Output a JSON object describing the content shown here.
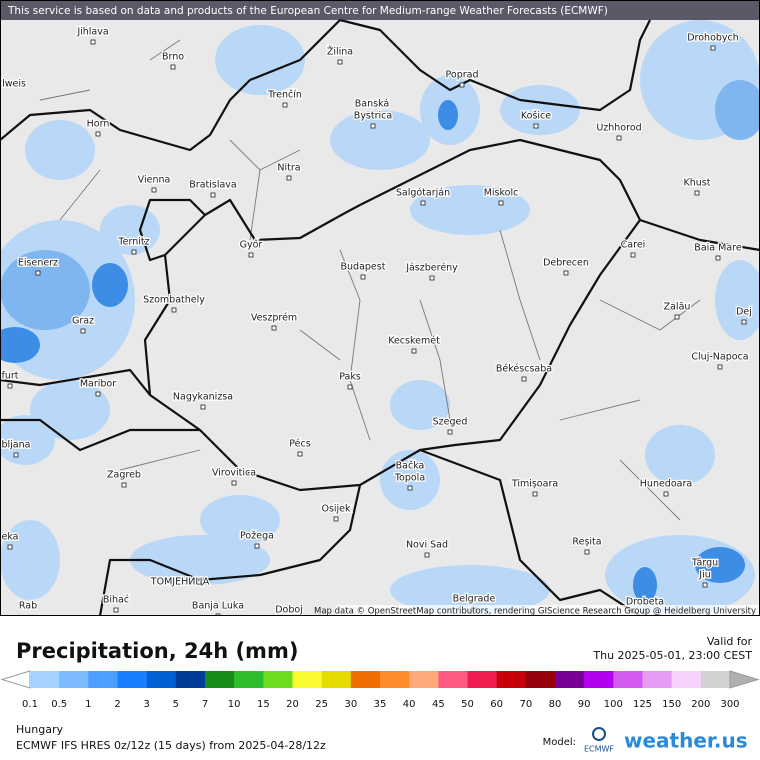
{
  "header": {
    "notice": "This service is based on data and products of the European Centre for Medium-range Weather Forecasts (ECMWF)"
  },
  "map": {
    "attribution": "Map data © OpenStreetMap contributors, rendering GIScience Research Group @ Heidelberg University",
    "cities": [
      "Jihlava",
      "Brno",
      "Žilina",
      "Poprad",
      "Drohobych",
      "lweis",
      "Horn",
      "Trenčín",
      "Banská",
      "Bystrica",
      "Košice",
      "Uzhhorod",
      "Nitra",
      "Vienna",
      "Bratislava",
      "Salgótarján",
      "Miskolc",
      "Khust",
      "Ternitz",
      "Győr",
      "Carei",
      "Baia Mare",
      "Eisenerz",
      "Budapest",
      "Jászberény",
      "Debrecen",
      "Szombathely",
      "Zalău",
      "Graz",
      "Veszprém",
      "Dej",
      "Kecskemét",
      "Cluj-Napoca",
      "furt",
      "Paks",
      "Békéscsaba",
      "Maribor",
      "Nagykanizsa",
      "Szeged",
      "bljana",
      "Pécs",
      "Zagreb",
      "Virovitica",
      "Bačka",
      "Topola",
      "Timișoara",
      "Hunedoara",
      "eka",
      "Osijek",
      "Požega",
      "Novi Sad",
      "Reșita",
      "Târgu",
      "Jiu",
      "ТОМЈЕНИЦА",
      "Bihać",
      "Banja Luka",
      "Doboj",
      "Belgrade",
      "Drobeta",
      "Rab"
    ]
  },
  "legend": {
    "title": "Precipitation, 24h (mm)",
    "valid_label": "Valid for",
    "valid_time": "Thu 2025-05-01, 23:00 CEST",
    "labels": [
      "0.1",
      "0.5",
      "1",
      "2",
      "3",
      "5",
      "7",
      "10",
      "15",
      "20",
      "25",
      "30",
      "35",
      "40",
      "45",
      "50",
      "60",
      "70",
      "80",
      "90",
      "100",
      "125",
      "150",
      "200",
      "300"
    ],
    "colors": [
      "#a6d2ff",
      "#7dbbff",
      "#4d9fff",
      "#1a7fff",
      "#0060d6",
      "#003d99",
      "#1a8c1a",
      "#2dbd2d",
      "#6cdc1e",
      "#fafa32",
      "#e6dc00",
      "#f06e00",
      "#ff8c28",
      "#ffaa78",
      "#ff5a82",
      "#f01e50",
      "#c8000a",
      "#96000a",
      "#780096",
      "#b400f0",
      "#d25af0",
      "#e69bf5",
      "#f5d2fa",
      "#d2d2d2"
    ]
  },
  "footer": {
    "region": "Hungary",
    "model_run": "ECMWF IFS HRES 0z/12z (15 days) from  2025-04-28/12z",
    "model_label": "Model:",
    "model_logo": "ECMWF",
    "brand": "weather.us"
  }
}
